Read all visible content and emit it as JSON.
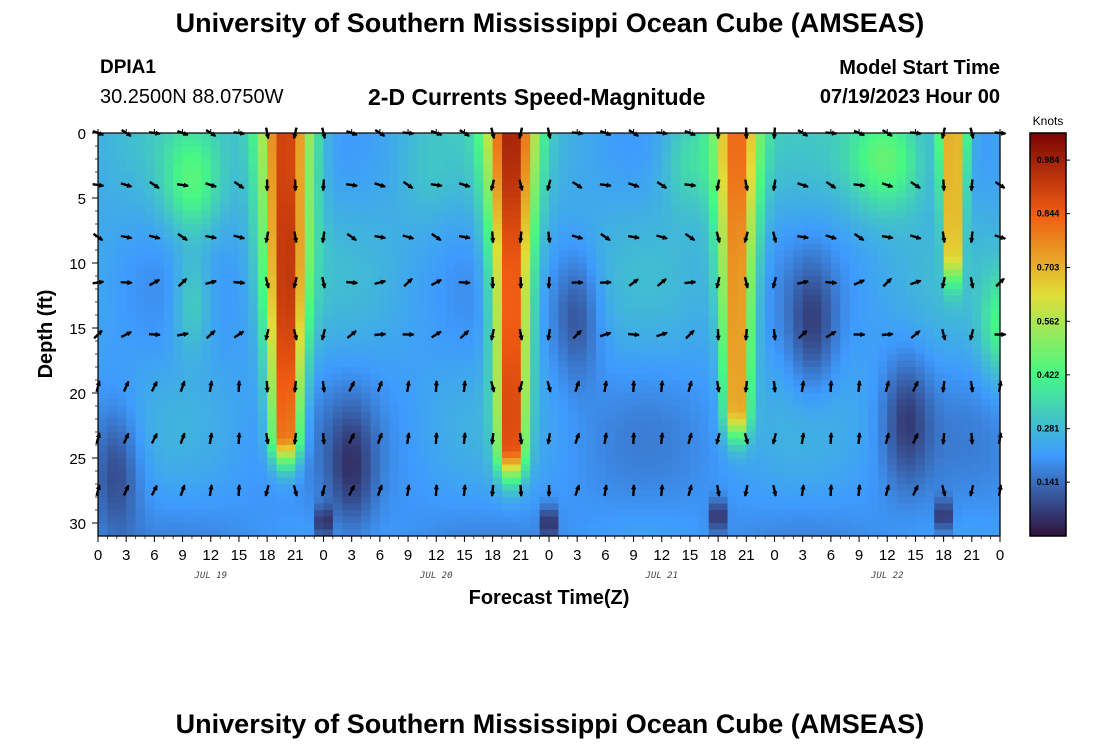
{
  "header": {
    "title": "University of Southern Mississippi Ocean Cube (AMSEAS)",
    "station": "DPIA1",
    "coords": "30.2500N  88.0750W",
    "subtitle": "2-D Currents Speed-Magnitude",
    "model_start_label": "Model Start Time",
    "model_start_value": "07/19/2023 Hour 00"
  },
  "footer": {
    "title": "University of Southern Mississippi Ocean Cube (AMSEAS)"
  },
  "colors": {
    "axis": "#000000",
    "arrow": "#000000",
    "date_label": "#444444"
  },
  "chart_data": {
    "type": "heatmap",
    "title": "2-D Currents Speed-Magnitude",
    "xlabel": "Forecast Time(Z)",
    "ylabel": "Depth (ft)",
    "xlim": [
      0,
      96
    ],
    "ylim": [
      31,
      0
    ],
    "x_tick_labels": [
      "0",
      "3",
      "6",
      "9",
      "12",
      "15",
      "18",
      "21",
      "0",
      "3",
      "6",
      "9",
      "12",
      "15",
      "18",
      "21",
      "0",
      "3",
      "6",
      "9",
      "12",
      "15",
      "18",
      "21",
      "0",
      "3",
      "6",
      "9",
      "12",
      "15",
      "18",
      "21",
      "0"
    ],
    "y_tick_values": [
      0,
      5,
      10,
      15,
      20,
      25,
      30
    ],
    "y_tick_labels": [
      "0",
      "5",
      "10",
      "15",
      "20",
      "25",
      "30"
    ],
    "date_labels": [
      {
        "text": "JUL 19",
        "hour": 12
      },
      {
        "text": "JUL 20",
        "hour": 36
      },
      {
        "text": "JUL 21",
        "hour": 60
      },
      {
        "text": "JUL 22",
        "hour": 84
      }
    ],
    "colorbar": {
      "unit": "Knots",
      "min": 0.0,
      "max": 1.055,
      "tick_values": [
        0.984,
        0.844,
        0.703,
        0.562,
        0.422,
        0.281,
        0.141
      ],
      "tick_labels": [
        "0.984",
        "0.844",
        "0.703",
        "0.562",
        "0.422",
        "0.281",
        "0.141"
      ],
      "colors": [
        "#30123b",
        "#3e9bfe",
        "#46f884",
        "#e1dd37",
        "#f05b12",
        "#7a0403"
      ]
    },
    "speed_components": {
      "base": 0.26,
      "ebb_events": [
        {
          "hour": 20,
          "peak": 0.95,
          "width_hours": 2.8,
          "max_depth_ft": 23
        },
        {
          "hour": 44,
          "peak": 0.95,
          "width_hours": 2.6,
          "max_depth_ft": 24
        },
        {
          "hour": 68,
          "peak": 0.82,
          "width_hours": 2.4,
          "max_depth_ft": 21
        },
        {
          "hour": 91,
          "peak": 0.8,
          "width_hours": 1.5,
          "max_depth_ft": 9
        }
      ],
      "surface_patches": [
        {
          "hour": 10,
          "peak": 0.45,
          "width_hours": 3,
          "depth_ft": 4
        },
        {
          "hour": 10,
          "peak": 0.4,
          "width_hours": 2,
          "depth_ft": 13
        },
        {
          "hour": 35,
          "peak": 0.3,
          "width_hours": 3,
          "depth_ft": 3
        },
        {
          "hour": 63,
          "peak": 0.4,
          "width_hours": 3,
          "depth_ft": 2
        },
        {
          "hour": 84,
          "peak": 0.5,
          "width_hours": 4,
          "depth_ft": 2
        },
        {
          "hour": 96,
          "peak": 0.45,
          "width_hours": 2,
          "depth_ft": 15
        }
      ],
      "slack_events": [
        {
          "hour": 2,
          "depth_ft": 26
        },
        {
          "hour": 27,
          "depth_ft": 26
        },
        {
          "hour": 51,
          "depth_ft": 14
        },
        {
          "hour": 76,
          "depth_ft": 15
        },
        {
          "hour": 86,
          "depth_ft": 22
        }
      ],
      "dark_spots": [
        {
          "hour": 24,
          "depth_ft": 30
        },
        {
          "hour": 48,
          "depth_ft": 30
        },
        {
          "hour": 66,
          "depth_ft": 29.5
        },
        {
          "hour": 90,
          "depth_ft": 29.5
        }
      ]
    },
    "vectors": {
      "depths_ft": [
        0,
        4,
        8,
        11.5,
        15.5,
        19.5,
        23.5,
        27.5
      ],
      "hours": [
        0,
        3,
        6,
        9,
        12,
        15,
        18,
        21,
        24,
        27,
        30,
        33,
        36,
        39,
        42,
        45,
        48,
        51,
        54,
        57,
        60,
        63,
        66,
        69,
        72,
        75,
        78,
        81,
        84,
        87,
        90,
        93,
        96
      ],
      "ebb_hours": [
        18,
        21,
        24,
        42,
        45,
        48,
        66,
        69,
        72,
        90,
        93
      ],
      "flood_direction_deg_shallow": 20,
      "flood_direction_deg_deep": 0,
      "ebb_direction_deg": 180
    }
  }
}
